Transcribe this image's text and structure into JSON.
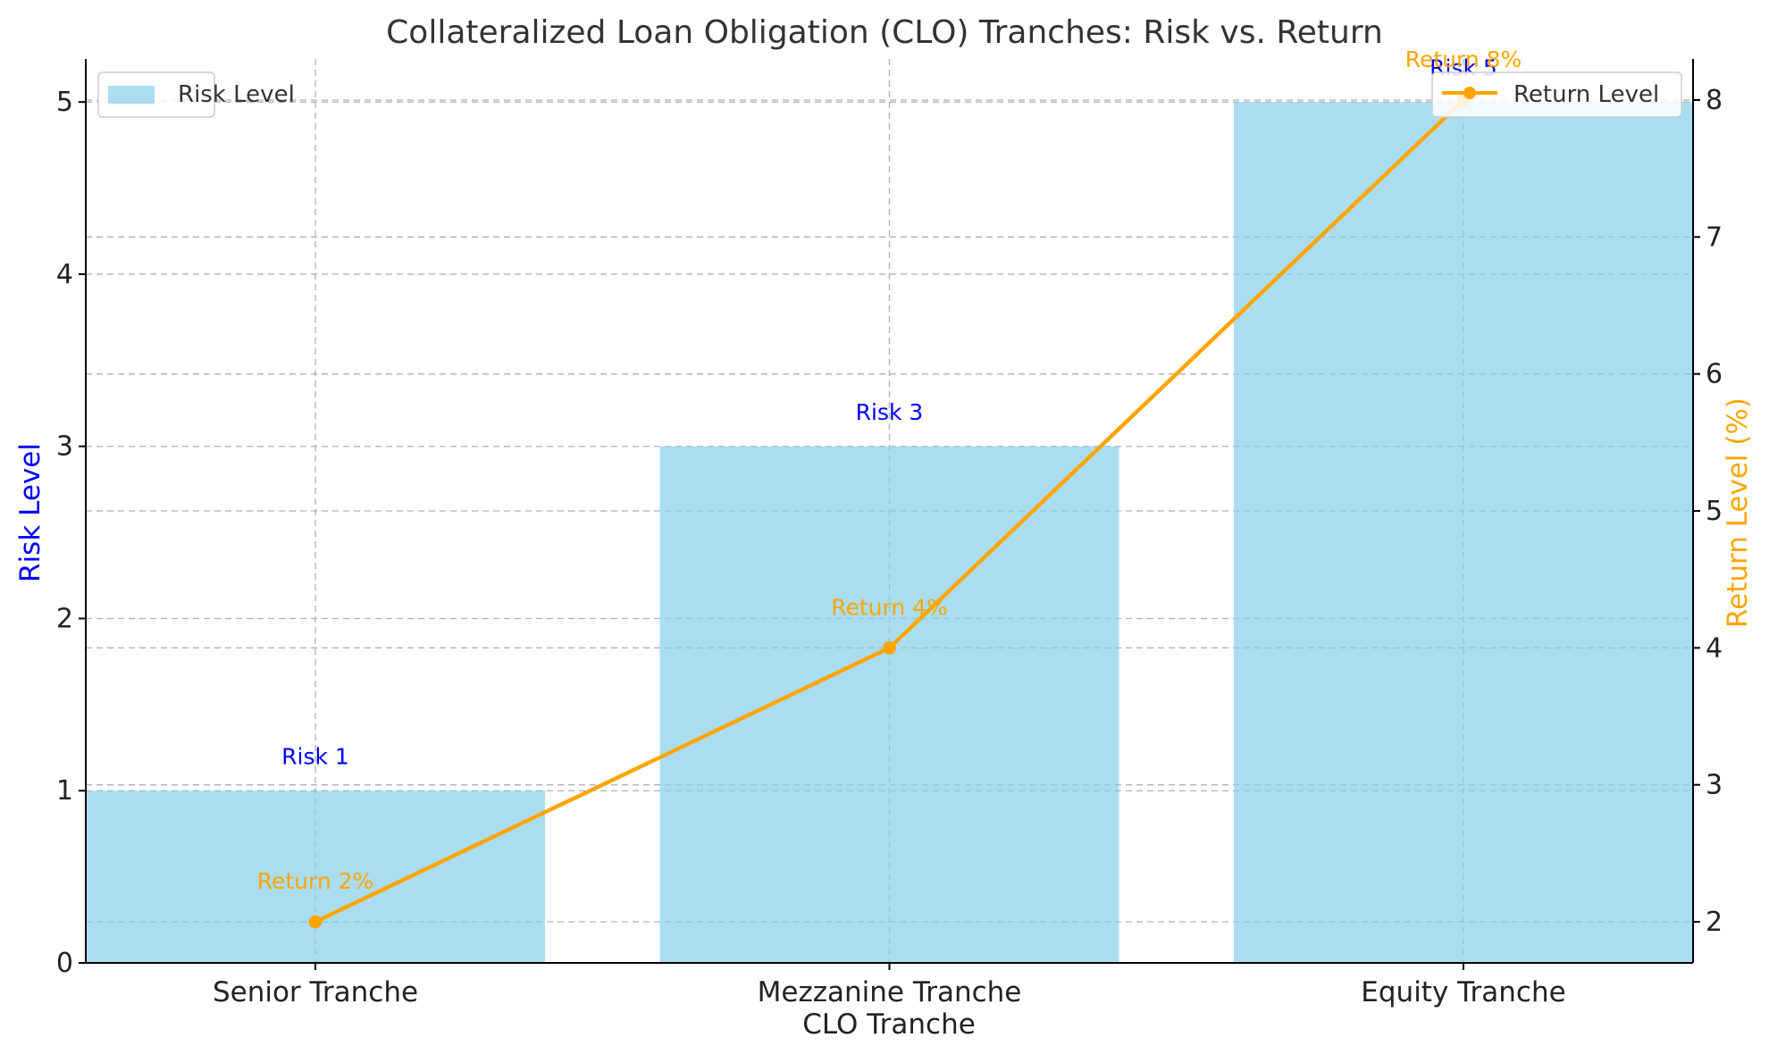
{
  "chart_data": {
    "type": "bar",
    "title": "Collateralized Loan Obligation (CLO) Tranches: Risk vs. Return",
    "xlabel": "CLO Tranche",
    "ylabel": "Risk Level",
    "y2label": "Return Level (%)",
    "categories": [
      "Senior Tranche",
      "Mezzanine Tranche",
      "Equity Tranche"
    ],
    "ylim": [
      0,
      5.25
    ],
    "y2lim": [
      1.7,
      8.3
    ],
    "yticks": [
      0,
      1,
      2,
      3,
      4,
      5
    ],
    "y2ticks": [
      2,
      3,
      4,
      5,
      6,
      7,
      8
    ],
    "grid": true,
    "series": [
      {
        "name": "Risk Level",
        "type": "bar",
        "axis": "left",
        "values": [
          1,
          3,
          5
        ],
        "color": "#87ceeb",
        "data_labels": [
          "Risk 1",
          "Risk 3",
          "Risk 5"
        ],
        "label_color": "#0000ff"
      },
      {
        "name": "Return Level",
        "type": "line",
        "axis": "right",
        "values": [
          2,
          4,
          8
        ],
        "color": "#ffa500",
        "marker": "circle",
        "data_labels": [
          "Return 2%",
          "Return 4%",
          "Return 8%"
        ],
        "label_color": "#ffa500"
      }
    ],
    "legends": [
      {
        "series": "Risk Level",
        "placement": "upper-left"
      },
      {
        "series": "Return Level",
        "placement": "upper-right"
      }
    ],
    "ylabel_color": "#0000ff",
    "y2label_color": "#ffa500"
  }
}
